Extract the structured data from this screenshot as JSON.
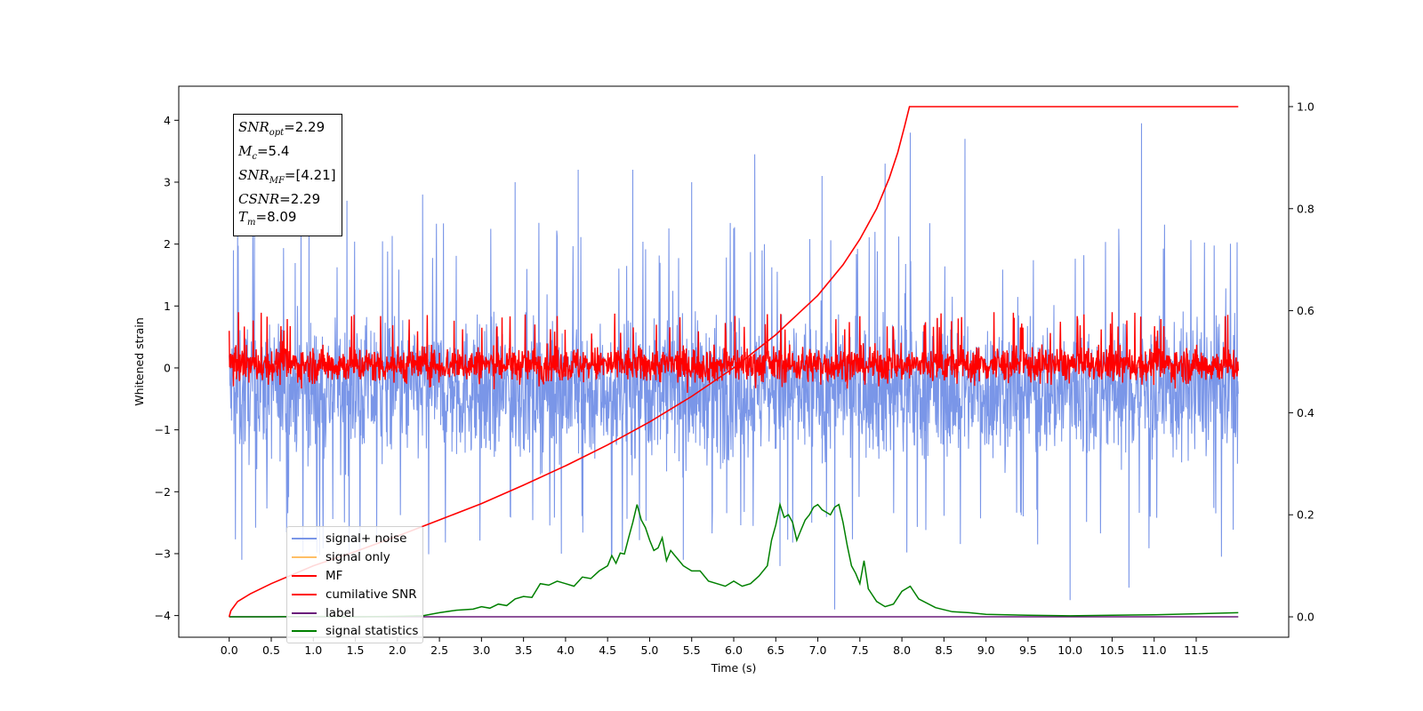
{
  "chart_data": {
    "type": "line",
    "title": "",
    "xlabel": "Time (s)",
    "ylabel": "Whitened strain",
    "y2label": "",
    "xlim": [
      -0.6,
      12.6
    ],
    "ylim": [
      -4.35,
      4.55
    ],
    "y2lim": [
      -0.04,
      1.04
    ],
    "x_ticks": [
      "0.0",
      "0.5",
      "1.0",
      "1.5",
      "2.0",
      "2.5",
      "3.0",
      "3.5",
      "4.0",
      "4.5",
      "5.0",
      "5.5",
      "6.0",
      "6.5",
      "7.0",
      "7.5",
      "8.0",
      "8.5",
      "9.0",
      "9.5",
      "10.0",
      "10.5",
      "11.0",
      "11.5"
    ],
    "y_ticks": [
      -4,
      -3,
      -2,
      -1,
      0,
      1,
      2,
      3,
      4
    ],
    "y2_ticks": [
      0.0,
      0.2,
      0.4,
      0.6,
      0.8,
      1.0
    ],
    "grid": false,
    "legend_position": "lower-left",
    "annotations": {
      "snr_opt": "2.29",
      "mc": "5.4",
      "snr_mf": "[4.21]",
      "csnr": "2.29",
      "tm": "8.09"
    },
    "series": [
      {
        "name": "signal+ noise",
        "color": "#7a96e8",
        "axis": "left",
        "description": "dense noise band",
        "band_center": -0.35,
        "band_spread": 1.25,
        "peaks_up": [
          [
            0.05,
            1.9
          ],
          [
            0.1,
            2.3
          ],
          [
            0.15,
            -3.1
          ],
          [
            0.3,
            2.2
          ],
          [
            0.95,
            2.6
          ],
          [
            1.4,
            2.7
          ],
          [
            2.3,
            2.8
          ],
          [
            3.4,
            3.0
          ],
          [
            3.95,
            -3.0
          ],
          [
            4.15,
            3.2
          ],
          [
            4.8,
            3.2
          ],
          [
            5.4,
            -3.1
          ],
          [
            5.5,
            3.0
          ],
          [
            6.25,
            3.45
          ],
          [
            6.55,
            -3.2
          ],
          [
            7.05,
            3.1
          ],
          [
            7.2,
            -3.9
          ],
          [
            7.8,
            3.3
          ],
          [
            8.1,
            3.8
          ],
          [
            8.75,
            3.7
          ],
          [
            10.0,
            -3.75
          ],
          [
            10.7,
            -3.55
          ],
          [
            10.85,
            3.95
          ],
          [
            11.8,
            -3.05
          ]
        ]
      },
      {
        "name": "signal only",
        "color": "#ffbf66",
        "axis": "left",
        "description": "not visible (hidden beneath other series)"
      },
      {
        "name": "MF",
        "color": "#ff0000",
        "axis": "left",
        "description": "dense band around 0",
        "band_center": 0,
        "band_spread": 0.45
      },
      {
        "name": "cumilative SNR",
        "color": "#ff0000",
        "axis": "right",
        "x": [
          0.0,
          0.02,
          0.1,
          0.25,
          0.5,
          1.0,
          1.5,
          2.0,
          2.5,
          3.0,
          3.5,
          4.0,
          4.5,
          5.0,
          5.5,
          6.0,
          6.5,
          7.0,
          7.3,
          7.5,
          7.7,
          7.85,
          7.95,
          8.03,
          8.09,
          12.0
        ],
        "values": [
          0.0,
          0.012,
          0.03,
          0.045,
          0.065,
          0.1,
          0.128,
          0.158,
          0.19,
          0.222,
          0.258,
          0.296,
          0.337,
          0.382,
          0.432,
          0.488,
          0.553,
          0.63,
          0.69,
          0.74,
          0.8,
          0.86,
          0.91,
          0.96,
          1.0,
          1.0
        ]
      },
      {
        "name": "label",
        "color": "#6a1b7a",
        "axis": "right",
        "x": [
          0.0,
          12.0
        ],
        "values": [
          0.0,
          0.0
        ]
      },
      {
        "name": "signal statistics",
        "color": "#008000",
        "axis": "right",
        "x": [
          0.0,
          0.5,
          1.0,
          1.5,
          2.0,
          2.3,
          2.5,
          2.7,
          2.9,
          3.0,
          3.1,
          3.2,
          3.3,
          3.4,
          3.5,
          3.6,
          3.7,
          3.8,
          3.9,
          4.0,
          4.1,
          4.2,
          4.3,
          4.4,
          4.5,
          4.55,
          4.6,
          4.65,
          4.7,
          4.75,
          4.8,
          4.85,
          4.9,
          4.95,
          5.0,
          5.05,
          5.1,
          5.15,
          5.2,
          5.25,
          5.3,
          5.4,
          5.5,
          5.6,
          5.7,
          5.8,
          5.9,
          6.0,
          6.1,
          6.2,
          6.3,
          6.4,
          6.45,
          6.5,
          6.55,
          6.6,
          6.65,
          6.7,
          6.75,
          6.8,
          6.85,
          6.9,
          6.95,
          7.0,
          7.05,
          7.1,
          7.15,
          7.2,
          7.25,
          7.3,
          7.35,
          7.4,
          7.45,
          7.5,
          7.55,
          7.6,
          7.7,
          7.8,
          7.9,
          8.0,
          8.1,
          8.2,
          8.4,
          8.6,
          8.8,
          9.0,
          9.5,
          10.0,
          10.5,
          11.0,
          11.5,
          12.0
        ],
        "values": [
          0.0,
          0.0,
          0.001,
          0.0,
          0.001,
          0.002,
          0.008,
          0.013,
          0.015,
          0.02,
          0.017,
          0.025,
          0.022,
          0.035,
          0.04,
          0.038,
          0.065,
          0.062,
          0.07,
          0.065,
          0.06,
          0.078,
          0.075,
          0.09,
          0.1,
          0.12,
          0.105,
          0.125,
          0.123,
          0.155,
          0.185,
          0.22,
          0.19,
          0.175,
          0.15,
          0.13,
          0.135,
          0.155,
          0.11,
          0.13,
          0.12,
          0.1,
          0.09,
          0.09,
          0.07,
          0.065,
          0.06,
          0.07,
          0.06,
          0.065,
          0.08,
          0.1,
          0.15,
          0.18,
          0.22,
          0.195,
          0.2,
          0.185,
          0.15,
          0.17,
          0.19,
          0.2,
          0.215,
          0.22,
          0.21,
          0.205,
          0.2,
          0.215,
          0.22,
          0.185,
          0.14,
          0.1,
          0.085,
          0.065,
          0.11,
          0.055,
          0.03,
          0.02,
          0.025,
          0.05,
          0.06,
          0.035,
          0.018,
          0.01,
          0.008,
          0.005,
          0.003,
          0.002,
          0.003,
          0.004,
          0.006,
          0.008
        ]
      }
    ]
  }
}
